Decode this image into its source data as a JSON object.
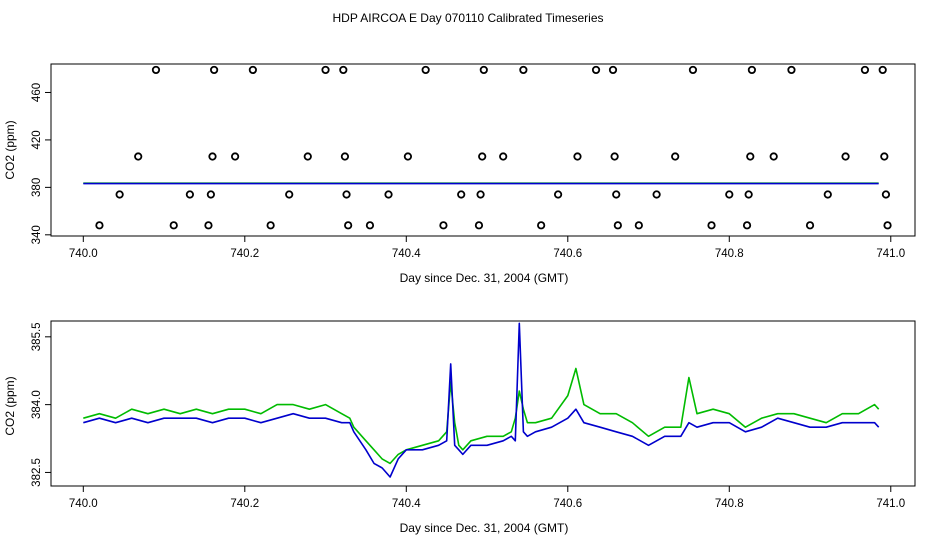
{
  "title": "HDP AIRCOA E  Day 070110  Calibrated Timeseries",
  "colors": {
    "series_blue": "#0000cc",
    "series_green": "#00bb00",
    "points": "#000000"
  },
  "chart_data": [
    {
      "type": "scatter",
      "xlabel": "Day since Dec. 31, 2004 (GMT)",
      "ylabel": "CO2 (ppm)",
      "xlim": [
        739.96,
        741.03
      ],
      "ylim": [
        339,
        484
      ],
      "grid": false,
      "x_ticks": [
        "740.0",
        "740.2",
        "740.4",
        "740.6",
        "740.8",
        "741.0"
      ],
      "y_ticks": [
        "340",
        "380",
        "420",
        "460"
      ],
      "points": [
        [
          740.02,
          348
        ],
        [
          740.045,
          374
        ],
        [
          740.068,
          406
        ],
        [
          740.09,
          479
        ],
        [
          740.112,
          348
        ],
        [
          740.132,
          374
        ],
        [
          740.155,
          348
        ],
        [
          740.158,
          374
        ],
        [
          740.16,
          406
        ],
        [
          740.162,
          479
        ],
        [
          740.188,
          406
        ],
        [
          740.21,
          479
        ],
        [
          740.232,
          348
        ],
        [
          740.255,
          374
        ],
        [
          740.278,
          406
        ],
        [
          740.3,
          479
        ],
        [
          740.322,
          479
        ],
        [
          740.324,
          406
        ],
        [
          740.326,
          374
        ],
        [
          740.328,
          348
        ],
        [
          740.355,
          348
        ],
        [
          740.378,
          374
        ],
        [
          740.402,
          406
        ],
        [
          740.424,
          479
        ],
        [
          740.446,
          348
        ],
        [
          740.468,
          374
        ],
        [
          740.49,
          348
        ],
        [
          740.492,
          374
        ],
        [
          740.494,
          406
        ],
        [
          740.496,
          479
        ],
        [
          740.52,
          406
        ],
        [
          740.545,
          479
        ],
        [
          740.567,
          348
        ],
        [
          740.588,
          374
        ],
        [
          740.612,
          406
        ],
        [
          740.635,
          479
        ],
        [
          740.656,
          479
        ],
        [
          740.658,
          406
        ],
        [
          740.66,
          374
        ],
        [
          740.662,
          348
        ],
        [
          740.688,
          348
        ],
        [
          740.71,
          374
        ],
        [
          740.733,
          406
        ],
        [
          740.755,
          479
        ],
        [
          740.778,
          348
        ],
        [
          740.8,
          374
        ],
        [
          740.822,
          348
        ],
        [
          740.824,
          374
        ],
        [
          740.826,
          406
        ],
        [
          740.828,
          479
        ],
        [
          740.855,
          406
        ],
        [
          740.877,
          479
        ],
        [
          740.9,
          348
        ],
        [
          740.922,
          374
        ],
        [
          740.944,
          406
        ],
        [
          740.968,
          479
        ],
        [
          740.99,
          479
        ],
        [
          740.992,
          406
        ],
        [
          740.994,
          374
        ],
        [
          740.996,
          348
        ]
      ],
      "series": [
        {
          "color": "#00bb00",
          "x_start": 740.0,
          "x_end": 740.985,
          "level": 383.5
        },
        {
          "color": "#0000cc",
          "x_start": 740.0,
          "x_end": 740.985,
          "level": 383.2
        }
      ]
    },
    {
      "type": "line",
      "xlabel": "Day since Dec. 31, 2004 (GMT)",
      "ylabel": "CO2 (ppm)",
      "xlim": [
        739.96,
        741.03
      ],
      "ylim": [
        382.2,
        385.85
      ],
      "grid": false,
      "x_ticks": [
        "740.0",
        "740.2",
        "740.4",
        "740.6",
        "740.8",
        "741.0"
      ],
      "y_ticks": [
        "382.5",
        "384.0",
        "385.5"
      ],
      "x": [
        740.0,
        740.02,
        740.04,
        740.06,
        740.08,
        740.1,
        740.12,
        740.14,
        740.16,
        740.18,
        740.2,
        740.22,
        740.24,
        740.26,
        740.28,
        740.3,
        740.32,
        740.33,
        740.335,
        740.35,
        740.36,
        740.37,
        740.38,
        740.39,
        740.4,
        740.42,
        740.44,
        740.45,
        740.455,
        740.46,
        740.465,
        740.47,
        740.48,
        740.5,
        740.52,
        740.53,
        740.535,
        740.54,
        740.545,
        740.55,
        740.56,
        740.58,
        740.6,
        740.61,
        740.62,
        740.64,
        740.66,
        740.68,
        740.7,
        740.72,
        740.74,
        740.75,
        740.76,
        740.78,
        740.8,
        740.82,
        740.84,
        740.86,
        740.88,
        740.9,
        740.92,
        740.94,
        740.96,
        740.98,
        740.985
      ],
      "series": [
        {
          "name": "",
          "color": "#00bb00",
          "values": [
            383.7,
            383.8,
            383.7,
            383.9,
            383.8,
            383.9,
            383.8,
            383.9,
            383.8,
            383.9,
            383.9,
            383.8,
            384.0,
            384.0,
            383.9,
            384.0,
            383.8,
            383.7,
            383.5,
            383.2,
            383.0,
            382.8,
            382.7,
            382.9,
            383.0,
            383.1,
            383.2,
            383.4,
            384.5,
            383.6,
            383.1,
            383.0,
            383.2,
            383.3,
            383.3,
            383.4,
            383.7,
            384.3,
            383.9,
            383.6,
            383.6,
            383.7,
            384.2,
            384.8,
            384.0,
            383.8,
            383.8,
            383.6,
            383.3,
            383.5,
            383.5,
            384.6,
            383.8,
            383.9,
            383.8,
            383.5,
            383.7,
            383.8,
            383.8,
            383.7,
            383.6,
            383.8,
            383.8,
            384.0,
            383.9
          ]
        },
        {
          "name": "",
          "color": "#0000cc",
          "values": [
            383.6,
            383.7,
            383.6,
            383.7,
            383.6,
            383.7,
            383.7,
            383.7,
            383.6,
            383.7,
            383.7,
            383.6,
            383.7,
            383.8,
            383.7,
            383.7,
            383.6,
            383.6,
            383.4,
            383.0,
            382.7,
            382.6,
            382.4,
            382.8,
            383.0,
            383.0,
            383.1,
            383.2,
            384.9,
            383.1,
            383.0,
            382.9,
            383.1,
            383.1,
            383.2,
            383.3,
            383.2,
            385.8,
            383.4,
            383.3,
            383.4,
            383.5,
            383.7,
            383.9,
            383.6,
            383.5,
            383.4,
            383.3,
            383.1,
            383.3,
            383.3,
            383.6,
            383.5,
            383.6,
            383.6,
            383.4,
            383.5,
            383.7,
            383.6,
            383.5,
            383.5,
            383.6,
            383.6,
            383.6,
            383.5
          ]
        }
      ]
    }
  ]
}
